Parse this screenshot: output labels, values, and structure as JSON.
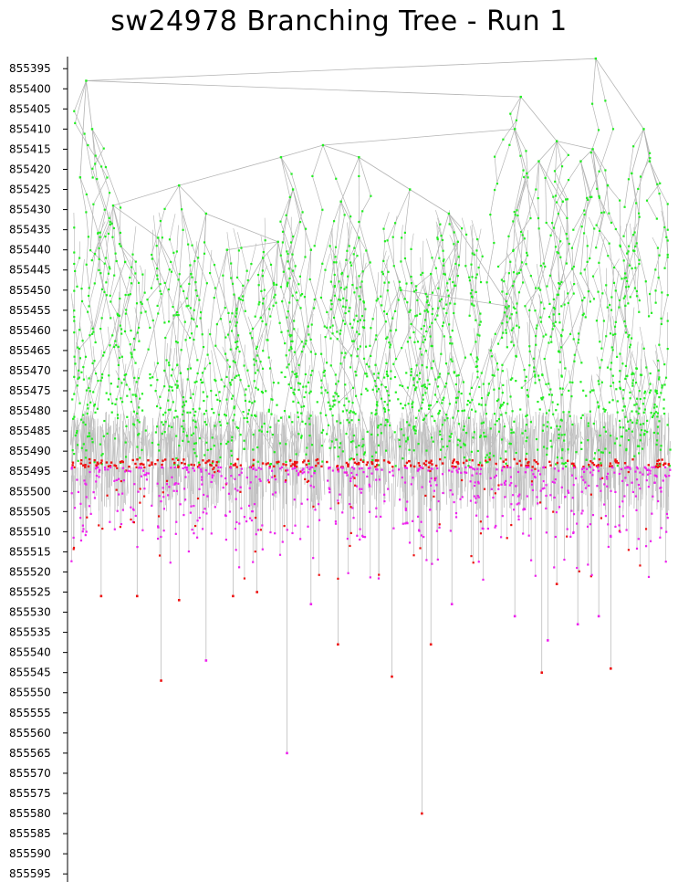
{
  "chart_data": {
    "type": "scatter",
    "title": "sw24978 Branching Tree - Run 1",
    "xlabel": "",
    "ylabel": "",
    "ylim": [
      855392,
      855597
    ],
    "y_inverted": true,
    "y_ticks": [
      855395,
      855400,
      855405,
      855410,
      855415,
      855420,
      855425,
      855430,
      855435,
      855440,
      855445,
      855450,
      855455,
      855460,
      855465,
      855470,
      855475,
      855480,
      855485,
      855490,
      855495,
      855500,
      855505,
      855510,
      855515,
      855520,
      855525,
      855530,
      855535,
      855540,
      855545,
      855550,
      855555,
      855560,
      855565,
      855570,
      855575,
      855580,
      855585,
      855590,
      855595
    ],
    "grid": false,
    "legend": "none",
    "colors": {
      "edge": "#b4b4b4",
      "dense_band": "#c0c0c0",
      "node_upper": "#22ee22",
      "node_lower": "#ee22ee",
      "node_leaf": "#ee1111",
      "axis": "#000000"
    },
    "main_nodes": [
      {
        "id": 0,
        "x": 0.875,
        "y": 855392.5,
        "p": -1
      },
      {
        "id": 1,
        "x": 0.025,
        "y": 855398,
        "p": 0
      },
      {
        "id": 2,
        "x": 0.75,
        "y": 855402,
        "p": 1
      },
      {
        "id": 3,
        "x": 0.955,
        "y": 855410,
        "p": 0
      },
      {
        "id": 4,
        "x": 0.74,
        "y": 855410,
        "p": 2
      },
      {
        "id": 5,
        "x": 0.81,
        "y": 855413,
        "p": 2
      },
      {
        "id": 6,
        "x": 0.87,
        "y": 855415,
        "p": 5
      },
      {
        "id": 7,
        "x": 0.42,
        "y": 855414,
        "p": 4
      },
      {
        "id": 8,
        "x": 0.35,
        "y": 855417,
        "p": 7
      },
      {
        "id": 9,
        "x": 0.48,
        "y": 855417,
        "p": 7
      },
      {
        "id": 10,
        "x": 0.18,
        "y": 855424,
        "p": 8
      },
      {
        "id": 11,
        "x": 0.07,
        "y": 855429,
        "p": 10
      },
      {
        "id": 12,
        "x": 0.225,
        "y": 855431,
        "p": 10
      },
      {
        "id": 13,
        "x": 0.345,
        "y": 855438,
        "p": 12
      },
      {
        "id": 14,
        "x": 0.32,
        "y": 855442,
        "p": 13
      },
      {
        "id": 15,
        "x": 0.26,
        "y": 855440,
        "p": 13
      },
      {
        "id": 16,
        "x": 0.565,
        "y": 855425,
        "p": 9
      },
      {
        "id": 17,
        "x": 0.63,
        "y": 855431,
        "p": 16
      },
      {
        "id": 18,
        "x": 0.73,
        "y": 855454,
        "p": 17
      },
      {
        "id": 19,
        "x": 0.55,
        "y": 855450,
        "p": 18
      },
      {
        "id": 20,
        "x": 0.45,
        "y": 855428,
        "p": 9
      },
      {
        "id": 21,
        "x": 0.37,
        "y": 855425,
        "p": 8
      },
      {
        "id": 22,
        "x": 0.09,
        "y": 855443,
        "p": 11
      },
      {
        "id": 23,
        "x": 0.145,
        "y": 855437,
        "p": 11
      },
      {
        "id": 24,
        "x": 0.015,
        "y": 855422,
        "p": 1
      },
      {
        "id": 25,
        "x": 0.035,
        "y": 855410,
        "p": 1
      },
      {
        "id": 26,
        "x": 0.76,
        "y": 855421,
        "p": 4
      },
      {
        "id": 27,
        "x": 0.78,
        "y": 855418,
        "p": 5
      },
      {
        "id": 28,
        "x": 0.85,
        "y": 855418,
        "p": 6
      },
      {
        "id": 29,
        "x": 0.895,
        "y": 855424,
        "p": 6
      },
      {
        "id": 30,
        "x": 0.935,
        "y": 855421,
        "p": 3
      },
      {
        "id": 31,
        "x": 0.965,
        "y": 855418,
        "p": 3
      },
      {
        "id": 32,
        "x": 0.82,
        "y": 855428,
        "p": 27
      },
      {
        "id": 33,
        "x": 0.2,
        "y": 855446,
        "p": 12
      },
      {
        "id": 34,
        "x": 0.645,
        "y": 855438,
        "p": 17
      },
      {
        "id": 35,
        "x": 0.48,
        "y": 855437,
        "p": 20
      },
      {
        "id": 36,
        "x": 0.4,
        "y": 855440,
        "p": 21
      },
      {
        "id": 37,
        "x": 0.28,
        "y": 855452,
        "p": 14
      },
      {
        "id": 38,
        "x": 0.6,
        "y": 855446,
        "p": 17
      },
      {
        "id": 39,
        "x": 0.7,
        "y": 855465,
        "p": 18
      }
    ],
    "dense_band": {
      "y_from": 855480,
      "y_to": 855505,
      "x_from": 0.0,
      "x_to": 1.0
    },
    "leaf_rows": {
      "red_band_y": [
        855492,
        855494
      ],
      "magenta_band_y": [
        855494,
        855512
      ]
    },
    "deep_leaves": [
      {
        "x": 0.15,
        "y": 855547,
        "color": "leaf"
      },
      {
        "x": 0.225,
        "y": 855542,
        "color": "lower"
      },
      {
        "x": 0.36,
        "y": 855565,
        "color": "lower"
      },
      {
        "x": 0.445,
        "y": 855538,
        "color": "leaf"
      },
      {
        "x": 0.535,
        "y": 855546,
        "color": "leaf"
      },
      {
        "x": 0.585,
        "y": 855580,
        "color": "leaf"
      },
      {
        "x": 0.6,
        "y": 855538,
        "color": "leaf"
      },
      {
        "x": 0.785,
        "y": 855545,
        "color": "leaf"
      },
      {
        "x": 0.795,
        "y": 855537,
        "color": "lower"
      },
      {
        "x": 0.9,
        "y": 855544,
        "color": "leaf"
      },
      {
        "x": 0.05,
        "y": 855526,
        "color": "leaf"
      },
      {
        "x": 0.11,
        "y": 855526,
        "color": "leaf"
      },
      {
        "x": 0.18,
        "y": 855527,
        "color": "leaf"
      },
      {
        "x": 0.27,
        "y": 855526,
        "color": "leaf"
      },
      {
        "x": 0.31,
        "y": 855525,
        "color": "leaf"
      },
      {
        "x": 0.4,
        "y": 855528,
        "color": "lower"
      },
      {
        "x": 0.635,
        "y": 855528,
        "color": "lower"
      },
      {
        "x": 0.74,
        "y": 855531,
        "color": "lower"
      },
      {
        "x": 0.81,
        "y": 855523,
        "color": "leaf"
      },
      {
        "x": 0.845,
        "y": 855533,
        "color": "lower"
      },
      {
        "x": 0.88,
        "y": 855531,
        "color": "lower"
      }
    ]
  }
}
